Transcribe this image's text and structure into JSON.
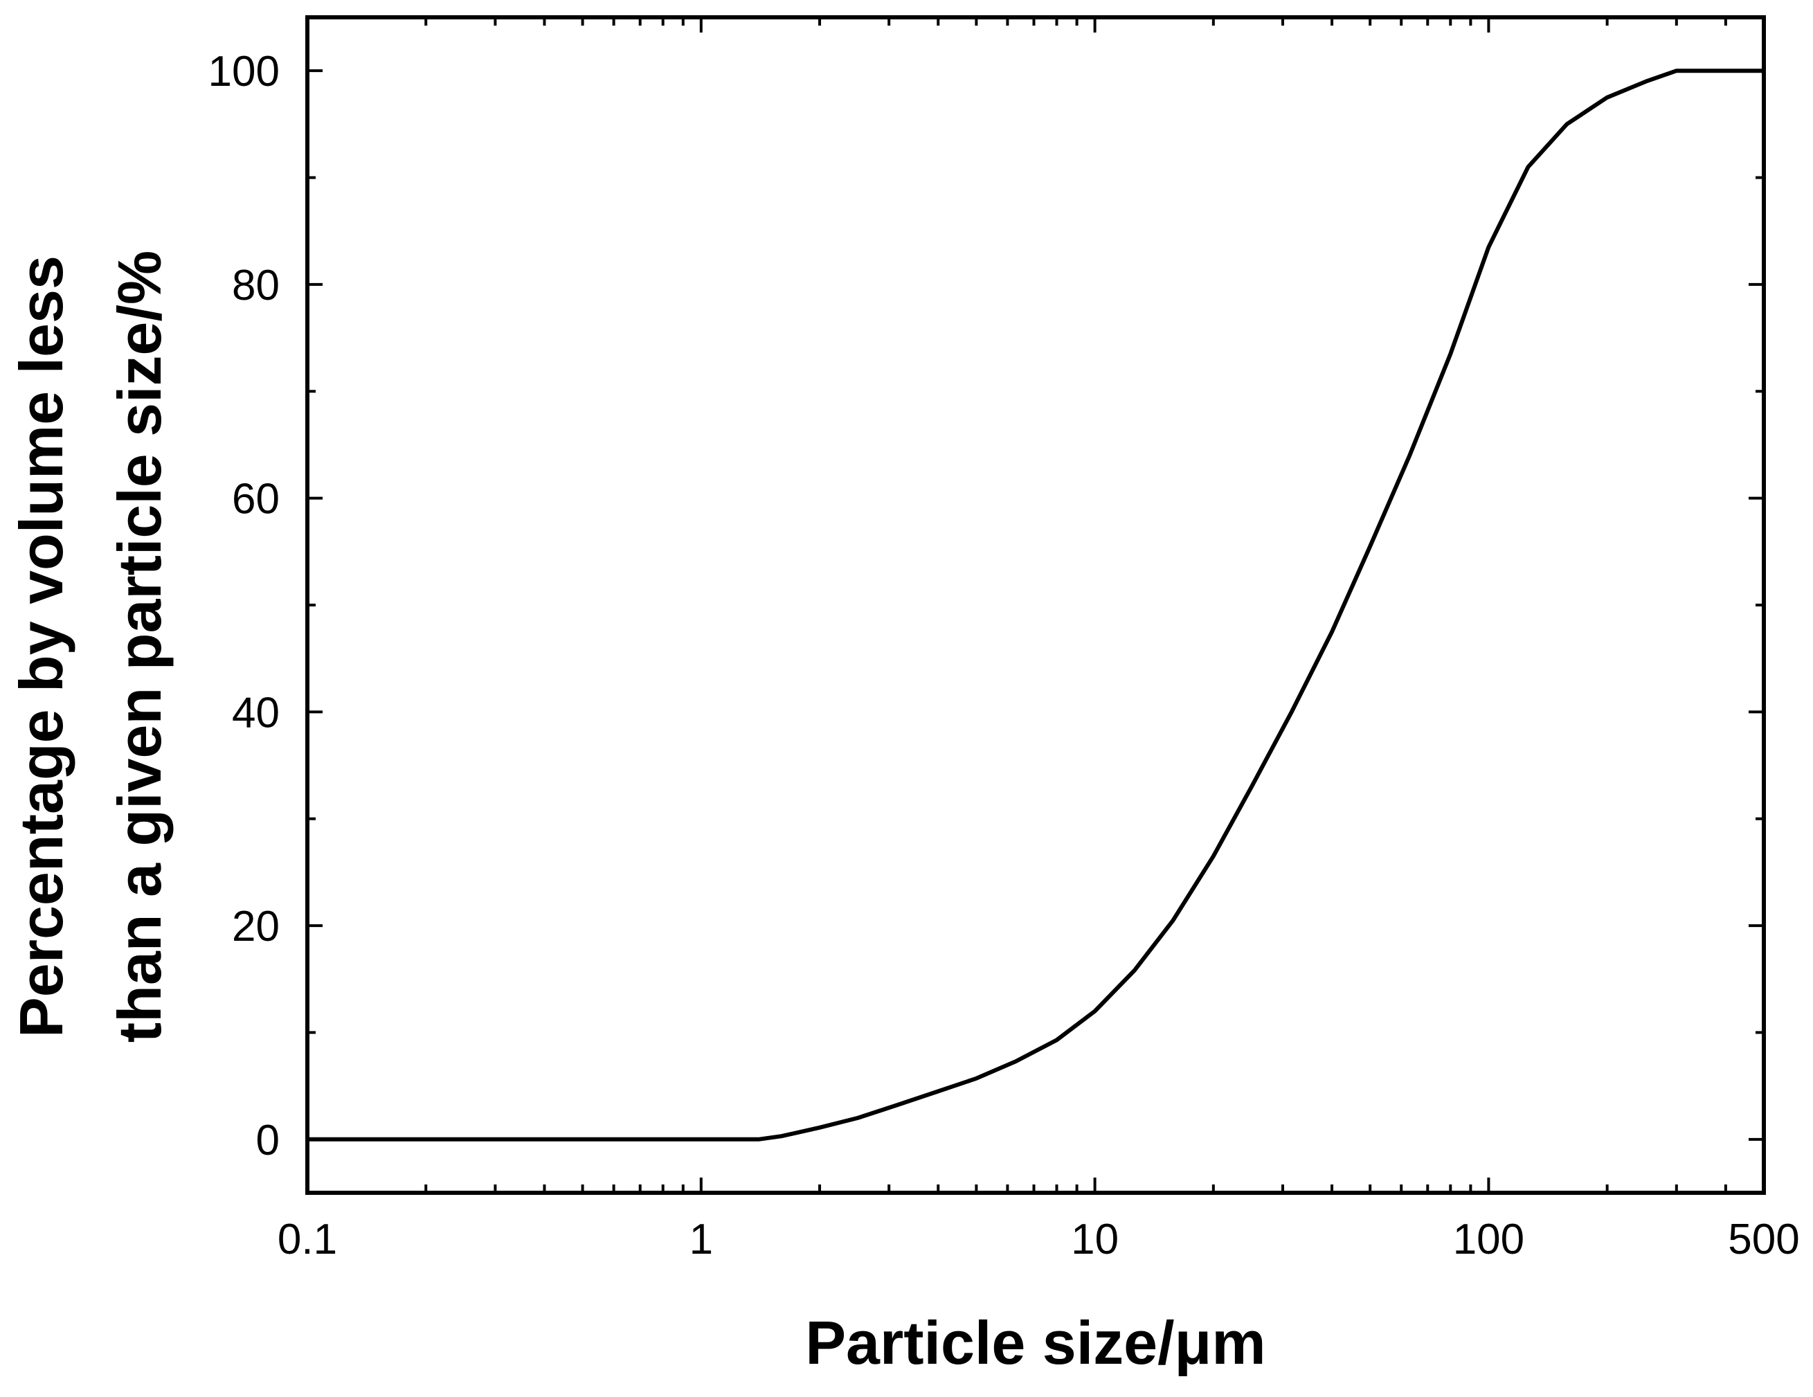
{
  "chart_data": {
    "type": "line",
    "xlabel": "Particle size/μm",
    "ylabel_line1": "Percentage by volume less",
    "ylabel_line2": "than a given particle size/%",
    "x_scale": "log",
    "xlim": [
      0.1,
      500
    ],
    "ylim": [
      -5,
      105
    ],
    "x_ticks": [
      {
        "value": 0.1,
        "label": "0.1"
      },
      {
        "value": 1,
        "label": "1"
      },
      {
        "value": 10,
        "label": "10"
      },
      {
        "value": 100,
        "label": "100"
      },
      {
        "value": 500,
        "label": "500"
      }
    ],
    "y_ticks": [
      {
        "value": 0,
        "label": "0"
      },
      {
        "value": 20,
        "label": "20"
      },
      {
        "value": 40,
        "label": "40"
      },
      {
        "value": 60,
        "label": "60"
      },
      {
        "value": 80,
        "label": "80"
      },
      {
        "value": 100,
        "label": "100"
      }
    ],
    "y_minor_ticks": [
      10,
      30,
      50,
      70,
      90
    ],
    "grid": false,
    "line_color": "#000000",
    "series": [
      {
        "x": [
          0.1,
          1.0,
          1.4,
          1.6,
          2.0,
          2.5,
          3.2,
          4.0,
          5.0,
          6.3,
          8.0,
          10,
          12.6,
          15.8,
          20,
          25,
          31.6,
          40,
          50,
          63,
          80,
          100,
          126,
          158,
          200,
          251,
          300,
          500
        ],
        "y": [
          0,
          0,
          0,
          0.3,
          1.1,
          2.0,
          3.3,
          4.5,
          5.7,
          7.3,
          9.3,
          12.0,
          15.8,
          20.5,
          26.5,
          33.0,
          40.0,
          47.5,
          55.5,
          64.0,
          73.5,
          83.5,
          91.0,
          95.0,
          97.5,
          99.0,
          100,
          100
        ]
      }
    ]
  }
}
